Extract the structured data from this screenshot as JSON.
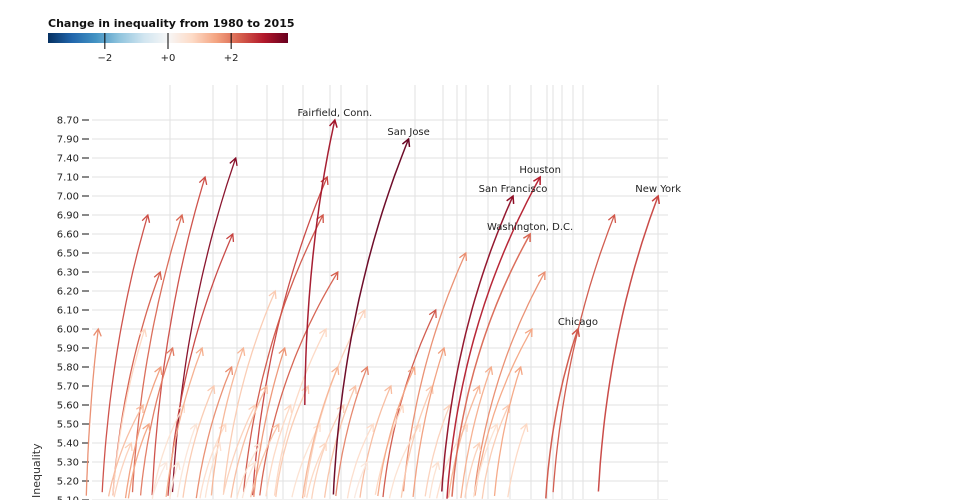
{
  "chart_data": {
    "type": "scatter",
    "subtype": "arrows",
    "legend": {
      "title": "Change in inequality from 1980 to 2015",
      "range": [
        -3.8,
        3.8
      ],
      "ticks": [
        {
          "value": -2,
          "label": "−2"
        },
        {
          "value": 0,
          "label": "+0"
        },
        {
          "value": 2,
          "label": "+2"
        }
      ],
      "colors": [
        "#053061",
        "#2166ac",
        "#4393c3",
        "#92c5de",
        "#d1e5f0",
        "#f7f7f7",
        "#fddbc7",
        "#f4a582",
        "#d6604d",
        "#b2182b",
        "#67001f"
      ],
      "placement": "top-left"
    },
    "ylabel": "Inequality",
    "xlabel": "",
    "xlim": [
      0,
      100
    ],
    "y_ticks": [
      "8.70",
      "7.90",
      "7.40",
      "7.10",
      "7.00",
      "6.90",
      "6.60",
      "6.50",
      "6.30",
      "6.20",
      "6.10",
      "6.00",
      "5.90",
      "5.80",
      "5.70",
      "5.60",
      "5.50",
      "5.40",
      "5.30",
      "5.20",
      "5.10"
    ],
    "grid": true,
    "labeled_series": [
      {
        "name": "Fairfield, Conn.",
        "x0": 36.4,
        "y0": 5.6,
        "x1": 41.5,
        "y1": 8.7,
        "change": 3.2
      },
      {
        "name": "San Jose",
        "x0": 41.0,
        "y0": 4.9,
        "x1": 54.0,
        "y1": 7.9,
        "change": 3.8
      },
      {
        "name": "Houston",
        "x0": 60.2,
        "y0": 4.9,
        "x1": 76.3,
        "y1": 7.1,
        "change": 3.0
      },
      {
        "name": "San Francisco",
        "x0": 59.3,
        "y0": 4.9,
        "x1": 71.7,
        "y1": 7.0,
        "change": 3.4
      },
      {
        "name": "New York",
        "x0": 85.9,
        "y0": 4.9,
        "x1": 96.3,
        "y1": 7.0,
        "change": 2.6
      },
      {
        "name": "Washington, D.C.",
        "x0": 61.0,
        "y0": 4.9,
        "x1": 74.6,
        "y1": 6.6,
        "change": 2.2
      },
      {
        "name": "Chicago",
        "x0": 77.0,
        "y0": 4.9,
        "x1": 82.7,
        "y1": 6.0,
        "change": 2.4
      }
    ],
    "other_series": [
      [
        1.7,
        4.8,
        9.8,
        6.9,
        2.5
      ],
      [
        6.8,
        4.8,
        15.6,
        6.9,
        2.2
      ],
      [
        10.2,
        4.8,
        19.5,
        7.1,
        2.5
      ],
      [
        13.6,
        4.8,
        24.7,
        7.4,
        3.5
      ],
      [
        12.7,
        4.8,
        24.2,
        6.6,
        2.6
      ],
      [
        3.4,
        4.8,
        11.9,
        6.3,
        2.3
      ],
      [
        27.1,
        4.8,
        40.2,
        7.1,
        2.6
      ],
      [
        25.4,
        4.8,
        39.5,
        6.9,
        2.4
      ],
      [
        28,
        4.8,
        42,
        6.3,
        2.3
      ],
      [
        -0.8,
        4.8,
        1.4,
        6.0,
        1.8
      ],
      [
        52.5,
        4.8,
        63.7,
        6.5,
        1.8
      ],
      [
        49,
        4.8,
        58.6,
        6.1,
        2.4
      ],
      [
        64.4,
        4.8,
        77.1,
        6.3,
        1.8
      ],
      [
        78,
        4.8,
        88.9,
        6.9,
        2.4
      ],
      [
        64.4,
        4.8,
        74.9,
        6.0,
        1.5
      ],
      [
        35.6,
        4.8,
        46.6,
        6.1,
        0.9
      ],
      [
        22,
        4.8,
        31.4,
        6.2,
        1.0
      ],
      [
        3.4,
        4.8,
        9.3,
        6.0,
        0.8
      ],
      [
        30.5,
        4.8,
        40,
        6.0,
        0.8
      ],
      [
        2,
        4.8,
        9,
        5.6,
        1.2
      ],
      [
        5,
        4.7,
        12,
        5.8,
        1.6
      ],
      [
        8,
        4.8,
        14,
        5.9,
        2.0
      ],
      [
        10,
        4.9,
        16,
        5.6,
        0.6
      ],
      [
        12,
        4.7,
        19,
        5.9,
        1.4
      ],
      [
        14,
        4.8,
        18,
        5.5,
        0.5
      ],
      [
        15,
        4.8,
        21,
        5.7,
        1.0
      ],
      [
        17,
        4.7,
        24,
        5.8,
        1.8
      ],
      [
        18,
        4.9,
        23,
        5.5,
        0.7
      ],
      [
        20,
        4.8,
        26,
        5.9,
        1.3
      ],
      [
        21,
        4.7,
        28,
        5.6,
        0.9
      ],
      [
        23,
        4.8,
        30,
        5.7,
        1.2
      ],
      [
        24,
        4.9,
        29,
        5.4,
        0.6
      ],
      [
        26,
        4.8,
        32,
        5.5,
        1.1
      ],
      [
        27,
        4.7,
        33,
        5.9,
        1.7
      ],
      [
        29,
        4.8,
        34,
        5.6,
        0.8
      ],
      [
        31,
        4.9,
        37,
        5.7,
        1.0
      ],
      [
        33,
        4.8,
        39,
        5.5,
        0.6
      ],
      [
        35,
        4.7,
        42,
        5.8,
        1.3
      ],
      [
        37,
        4.9,
        43,
        5.6,
        0.9
      ],
      [
        39,
        4.8,
        45,
        5.7,
        1.1
      ],
      [
        41,
        4.8,
        47,
        5.8,
        1.9
      ],
      [
        43,
        4.9,
        48,
        5.5,
        0.7
      ],
      [
        45,
        4.8,
        51,
        5.7,
        1.2
      ],
      [
        47,
        4.7,
        53,
        5.6,
        0.8
      ],
      [
        48,
        4.8,
        55,
        5.8,
        1.5
      ],
      [
        50,
        4.9,
        56,
        5.5,
        0.6
      ],
      [
        52,
        4.8,
        58,
        5.7,
        1.0
      ],
      [
        54,
        4.7,
        60,
        5.9,
        1.6
      ],
      [
        56,
        4.8,
        61,
        5.6,
        0.9
      ],
      [
        58,
        4.9,
        64,
        5.5,
        0.7
      ],
      [
        60,
        4.8,
        66,
        5.7,
        1.3
      ],
      [
        62,
        4.7,
        68,
        5.8,
        1.4
      ],
      [
        64,
        4.8,
        69,
        5.5,
        0.6
      ],
      [
        66,
        4.9,
        71,
        5.6,
        1.0
      ],
      [
        68,
        4.8,
        73,
        5.8,
        1.5
      ],
      [
        70,
        4.8,
        74,
        5.5,
        0.8
      ],
      [
        3,
        4.8,
        7,
        5.4,
        0.9
      ],
      [
        6,
        4.9,
        10,
        5.5,
        1.5
      ],
      [
        9,
        4.8,
        13,
        5.3,
        0.4
      ],
      [
        13,
        4.9,
        15,
        5.3,
        0.5
      ],
      [
        19,
        4.9,
        22,
        5.4,
        0.6
      ],
      [
        25,
        4.9,
        28,
        5.3,
        0.5
      ],
      [
        36,
        4.9,
        40,
        5.4,
        0.8
      ],
      [
        44,
        4.9,
        47,
        5.3,
        0.4
      ],
      [
        57,
        4.9,
        59,
        5.3,
        0.6
      ],
      [
        63,
        4.9,
        66,
        5.4,
        0.9
      ]
    ]
  }
}
